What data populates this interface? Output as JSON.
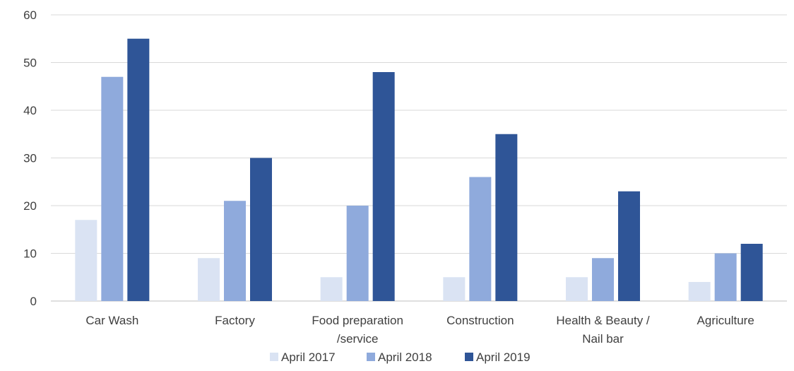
{
  "chart_data": {
    "type": "bar",
    "categories": [
      [
        "Car Wash"
      ],
      [
        "Factory"
      ],
      [
        "Food preparation",
        "/service"
      ],
      [
        "Construction"
      ],
      [
        "Health & Beauty /",
        "Nail bar"
      ],
      [
        "Agriculture"
      ]
    ],
    "series": [
      {
        "name": "April 2017",
        "color": "#dae3f3",
        "values": [
          17,
          9,
          5,
          5,
          5,
          4
        ]
      },
      {
        "name": "April 2018",
        "color": "#8faadc",
        "values": [
          47,
          21,
          20,
          26,
          9,
          10
        ]
      },
      {
        "name": "April 2019",
        "color": "#2f5597",
        "values": [
          55,
          30,
          48,
          35,
          23,
          12
        ]
      }
    ],
    "ylim": [
      0,
      60
    ],
    "yticks": [
      0,
      10,
      20,
      30,
      40,
      50,
      60
    ],
    "grid": true,
    "legend": "bottom"
  }
}
